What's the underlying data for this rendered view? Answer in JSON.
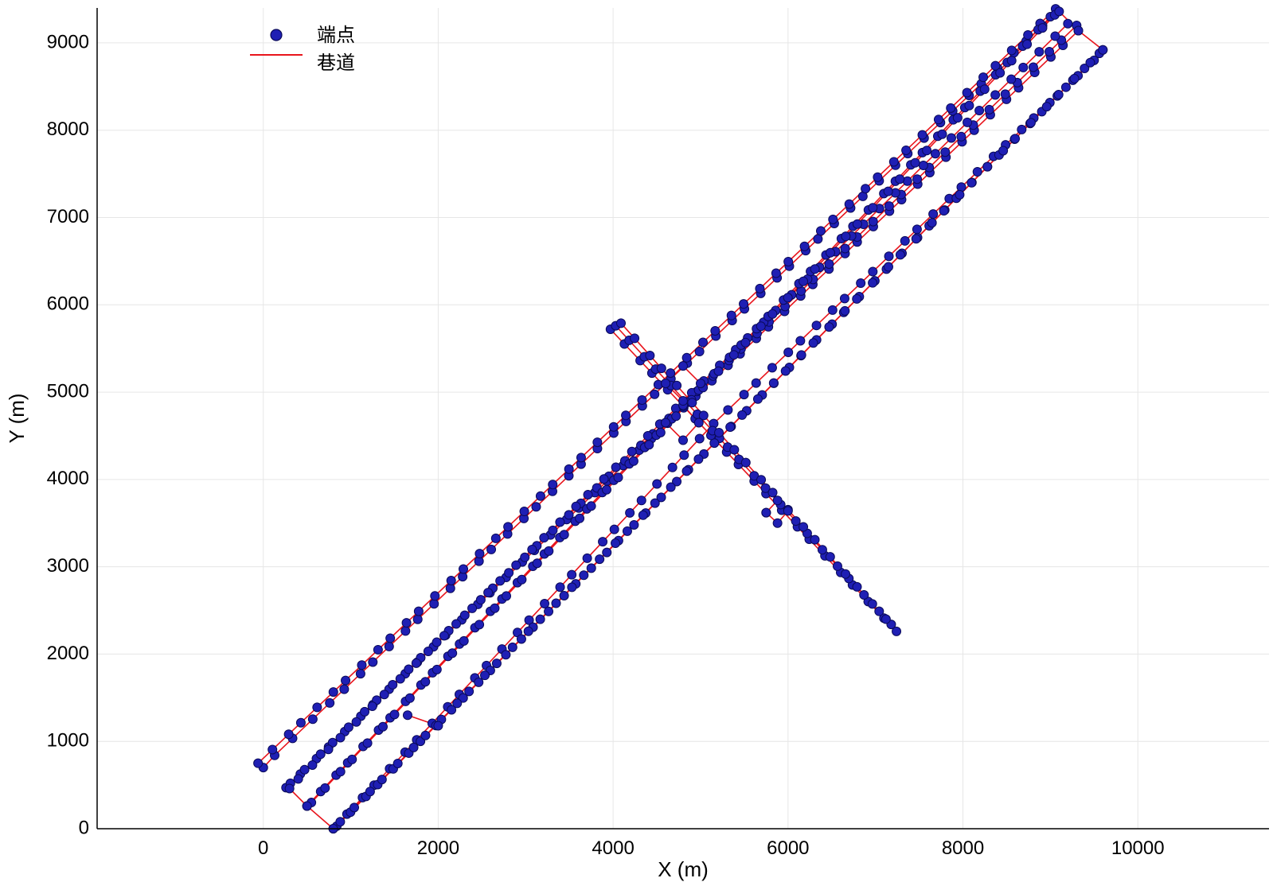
{
  "chart_data": {
    "type": "scatter",
    "title": "",
    "xlabel": "X (m)",
    "ylabel": "Y (m)",
    "xlim": [
      -1900,
      11500
    ],
    "ylim": [
      0,
      9400
    ],
    "xticks": [
      0,
      2000,
      4000,
      6000,
      8000,
      10000
    ],
    "yticks": [
      0,
      1000,
      2000,
      3000,
      4000,
      5000,
      6000,
      7000,
      8000,
      9000
    ],
    "grid": true,
    "legend": {
      "placement": "top-left",
      "entries": [
        "端点",
        "巷道"
      ]
    },
    "colors": {
      "points": "#1f1fb4",
      "point_edge": "#0a0a5a",
      "lines": "#e8141c",
      "grid": "#e6e6e6",
      "axes": "#000000"
    },
    "series": [
      {
        "name": "巷道",
        "kind": "line",
        "polylines": [
          [
            [
              0,
              700
            ],
            [
              130,
              840
            ],
            [
              760,
              1440
            ],
            [
              9080,
              9360
            ]
          ],
          [
            [
              -60,
              750
            ],
            [
              9060,
              9390
            ]
          ],
          [
            [
              260,
              470
            ],
            [
              9320,
              9140
            ]
          ],
          [
            [
              310,
              520
            ],
            [
              9300,
              9200
            ]
          ],
          [
            [
              400,
              570
            ],
            [
              9200,
              9220
            ]
          ],
          [
            [
              800,
              0
            ],
            [
              5150,
              4640
            ],
            [
              9500,
              8800
            ]
          ],
          [
            [
              840,
              30
            ],
            [
              9560,
              8880
            ]
          ],
          [
            [
              880,
              80
            ],
            [
              9600,
              8920
            ]
          ],
          [
            [
              500,
              260
            ],
            [
              9000,
              9300
            ]
          ],
          [
            [
              550,
              300
            ],
            [
              9050,
              9320
            ]
          ],
          [
            [
              1650,
              1300
            ],
            [
              2000,
              1180
            ]
          ],
          [
            [
              3970,
              5720
            ],
            [
              7240,
              2260
            ]
          ],
          [
            [
              4030,
              5760
            ],
            [
              7180,
              2340
            ]
          ],
          [
            [
              4090,
              5790
            ],
            [
              7120,
              2400
            ]
          ],
          [
            [
              300,
              460
            ],
            [
              500,
              260
            ],
            [
              800,
              0
            ]
          ],
          [
            [
              9100,
              9360
            ],
            [
              9320,
              9140
            ],
            [
              9600,
              8920
            ]
          ],
          [
            [
              4600,
              4650
            ],
            [
              4800,
              4450
            ],
            [
              4980,
              4650
            ],
            [
              4800,
              4850
            ],
            [
              4600,
              4650
            ]
          ],
          [
            [
              4600,
              5100
            ],
            [
              4800,
              4900
            ],
            [
              5000,
              5100
            ],
            [
              4800,
              5300
            ],
            [
              4600,
              5100
            ]
          ],
          [
            [
              5750,
              3620
            ],
            [
              5880,
              3500
            ],
            [
              6000,
              3640
            ],
            [
              5880,
              3760
            ],
            [
              5750,
              3620
            ]
          ]
        ]
      },
      {
        "name": "端点",
        "kind": "scatter",
        "note_x": [
          0,
          130,
          760,
          9080,
          260,
          310,
          400,
          800,
          840,
          880,
          9500,
          9560,
          9600,
          3970,
          4030,
          4090,
          7240,
          7180,
          7120,
          2000
        ],
        "note_y": [
          700,
          840,
          1440,
          9360,
          470,
          520,
          570,
          0,
          30,
          80,
          8800,
          8880,
          8920,
          5720,
          5760,
          5790,
          2260,
          2340,
          2400,
          1180
        ]
      }
    ]
  }
}
